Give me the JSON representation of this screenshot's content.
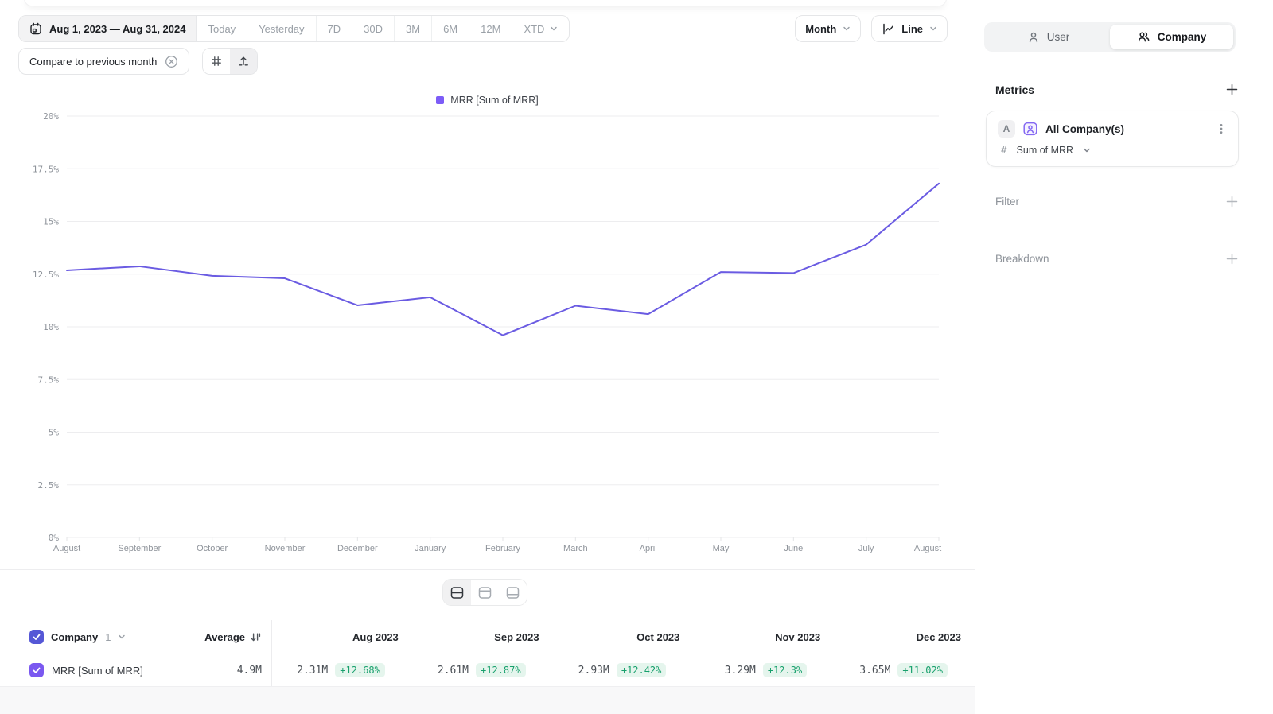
{
  "toolbar": {
    "date_range": "Aug 1, 2023 — Aug 31, 2024",
    "presets": [
      "Today",
      "Yesterday",
      "7D",
      "30D",
      "3M",
      "6M",
      "12M"
    ],
    "xtd_label": "XTD",
    "granularity_label": "Month",
    "chart_type_label": "Line",
    "compare_label": "Compare to previous month"
  },
  "chart_data": {
    "type": "line",
    "title": "",
    "xlabel": "",
    "ylabel": "",
    "x": [
      "August",
      "September",
      "October",
      "November",
      "December",
      "January",
      "February",
      "March",
      "April",
      "May",
      "June",
      "July",
      "August"
    ],
    "series": [
      {
        "name": "MRR [Sum of MRR]",
        "color": "#6a5be2",
        "values": [
          12.68,
          12.87,
          12.42,
          12.3,
          11.02,
          11.4,
          9.6,
          11.0,
          10.6,
          12.6,
          12.55,
          13.9,
          16.8
        ]
      }
    ],
    "ylim": [
      0,
      20
    ],
    "yticks": [
      "0%",
      "2.5%",
      "5%",
      "7.5%",
      "10%",
      "12.5%",
      "15%",
      "17.5%",
      "20%"
    ],
    "grid": true,
    "legend_position": "top"
  },
  "table": {
    "header": {
      "group_label": "Company",
      "group_count": "1",
      "average_label": "Average",
      "columns": [
        "Aug 2023",
        "Sep 2023",
        "Oct 2023",
        "Nov 2023",
        "Dec 2023"
      ]
    },
    "rows": [
      {
        "name": "MRR [Sum of MRR]",
        "average": "4.9M",
        "cells": [
          {
            "value": "2.31M",
            "delta": "+12.68%"
          },
          {
            "value": "2.61M",
            "delta": "+12.87%"
          },
          {
            "value": "2.93M",
            "delta": "+12.42%"
          },
          {
            "value": "3.29M",
            "delta": "+12.3%"
          },
          {
            "value": "3.65M",
            "delta": "+11.02%"
          }
        ]
      }
    ]
  },
  "sidebar": {
    "tabs": [
      {
        "label": "User",
        "active": false
      },
      {
        "label": "Company",
        "active": true
      }
    ],
    "metrics": {
      "title": "Metrics",
      "card": {
        "badge": "A",
        "name": "All Company(s)",
        "aggregation": "Sum of MRR"
      }
    },
    "filter_label": "Filter",
    "breakdown_label": "Breakdown"
  },
  "colors": {
    "line": "#6a5be2",
    "legend_swatch": "#7c5cf7",
    "checkbox_header": "#5557d6",
    "checkbox_row": "#7a58f0",
    "delta_text": "#17a06c",
    "delta_bg": "#e5f5ed",
    "grid_line": "#ededef",
    "axis_text": "#8e939a"
  }
}
